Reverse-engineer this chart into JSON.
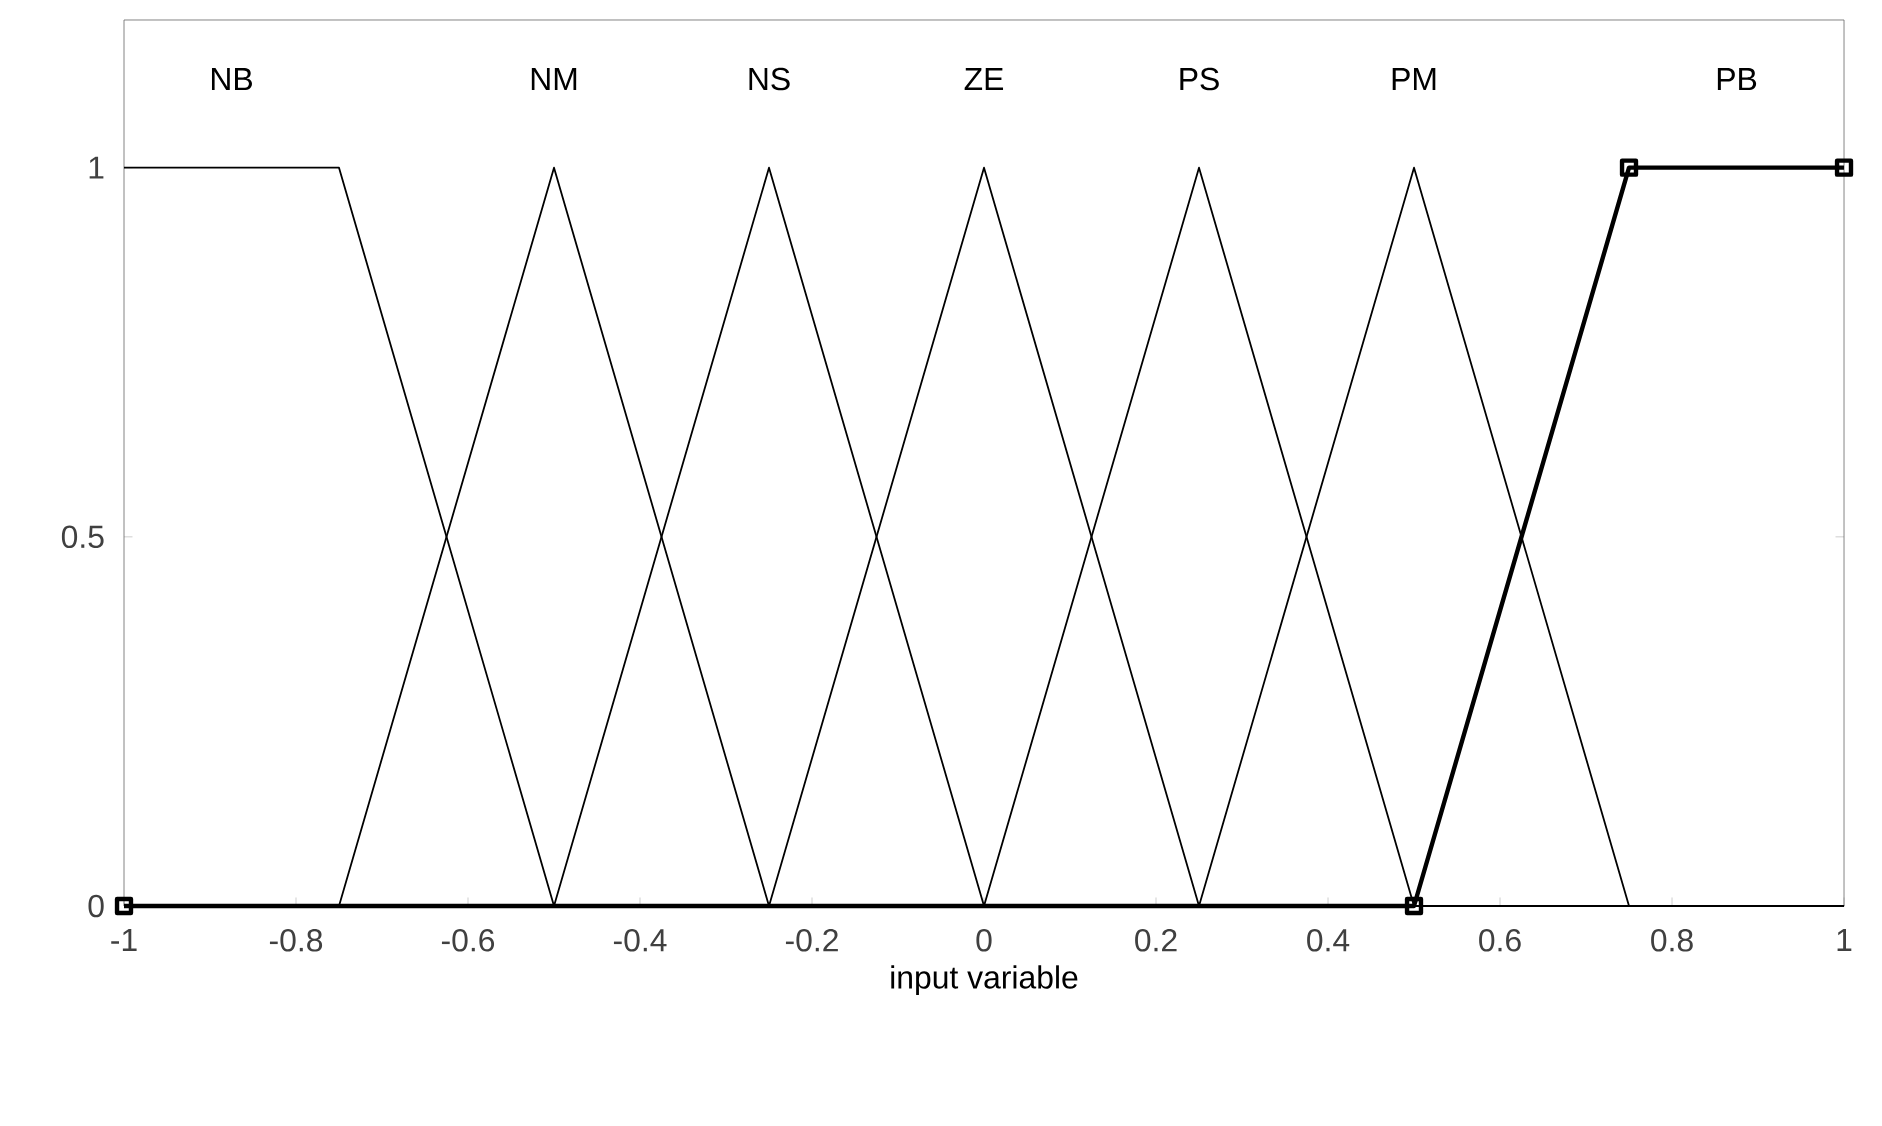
{
  "chart_data": {
    "type": "line",
    "xlabel": "input variable",
    "xlim": [
      -1,
      1
    ],
    "ylim": [
      0,
      1.2
    ],
    "xticks": [
      -1,
      -0.8,
      -0.6,
      -0.4,
      -0.2,
      0,
      0.2,
      0.4,
      0.6,
      0.8,
      1
    ],
    "yticks": [
      0,
      0.5,
      1
    ],
    "grid": false,
    "series": [
      {
        "name": "NB",
        "color": "#000000",
        "x": [
          -1,
          -0.75,
          -0.5,
          1
        ],
        "values": [
          1,
          1,
          0,
          0
        ]
      },
      {
        "name": "NM",
        "color": "#000000",
        "x": [
          -1,
          -0.75,
          -0.5,
          -0.25,
          1
        ],
        "values": [
          0,
          0,
          1,
          0,
          0
        ]
      },
      {
        "name": "NS",
        "color": "#000000",
        "x": [
          -1,
          -0.5,
          -0.25,
          0,
          1
        ],
        "values": [
          0,
          0,
          1,
          0,
          0
        ]
      },
      {
        "name": "ZE",
        "color": "#000000",
        "x": [
          -1,
          -0.25,
          0,
          0.25,
          1
        ],
        "values": [
          0,
          0,
          1,
          0,
          0
        ]
      },
      {
        "name": "PS",
        "color": "#000000",
        "x": [
          -1,
          0,
          0.25,
          0.5,
          1
        ],
        "values": [
          0,
          0,
          1,
          0,
          0
        ]
      },
      {
        "name": "PM",
        "color": "#000000",
        "x": [
          -1,
          0.25,
          0.5,
          0.75,
          1
        ],
        "values": [
          0,
          0,
          1,
          0,
          0
        ]
      },
      {
        "name": "PB",
        "color": "#000000",
        "marker": "square",
        "x": [
          -1,
          0.5,
          0.75,
          1
        ],
        "values": [
          0,
          0,
          1,
          1
        ]
      }
    ]
  }
}
